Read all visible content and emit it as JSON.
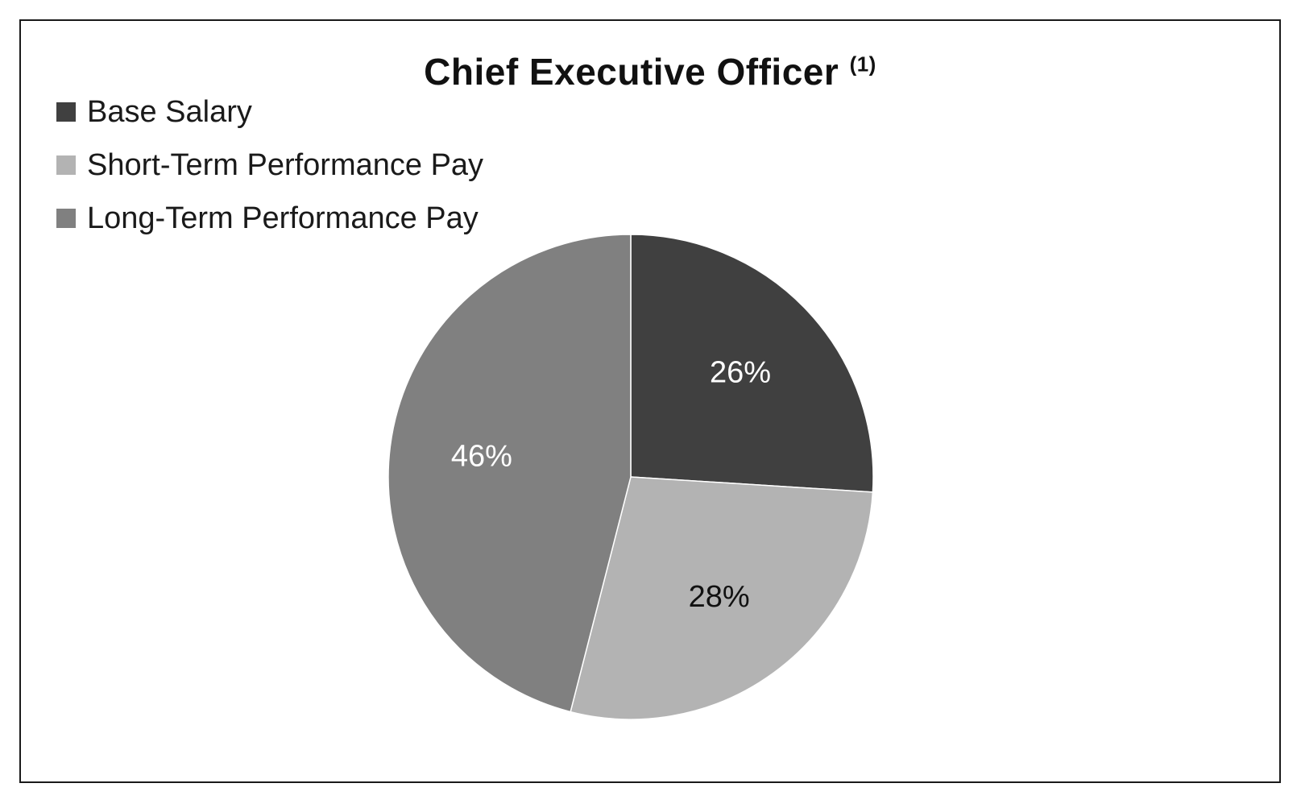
{
  "chart_data": {
    "type": "pie",
    "title": "Chief Executive Officer",
    "title_superscript": "(1)",
    "legend_position": "top-left",
    "slices": [
      {
        "name": "Base Salary",
        "value": 26,
        "label": "26%",
        "color": "#404040",
        "label_color": "#ffffff"
      },
      {
        "name": "Short-Term Performance Pay",
        "value": 28,
        "label": "28%",
        "color": "#b3b3b3",
        "label_color": "#111111"
      },
      {
        "name": "Long-Term Performance Pay",
        "value": 46,
        "label": "46%",
        "color": "#808080",
        "label_color": "#ffffff"
      }
    ]
  }
}
